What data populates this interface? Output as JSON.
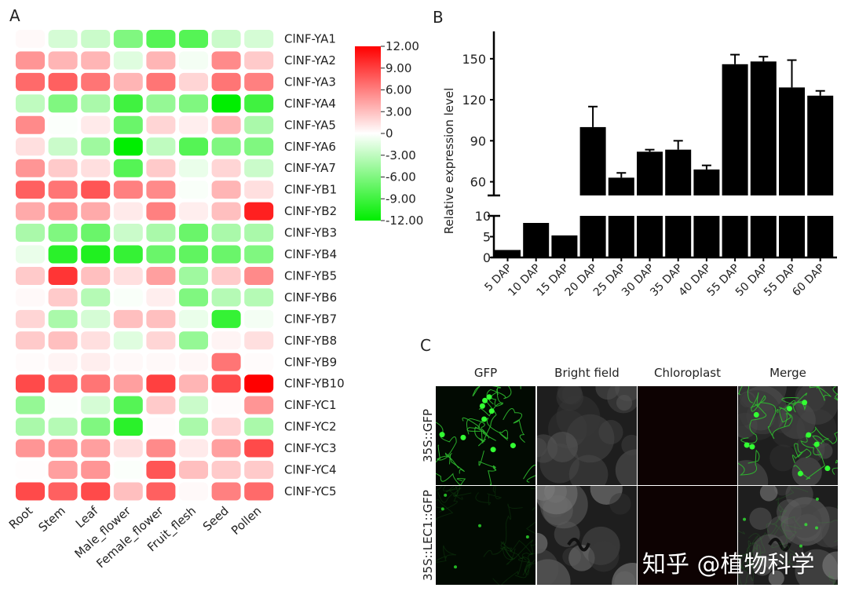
{
  "panels": {
    "a": "A",
    "b": "B",
    "c": "C"
  },
  "chart_data": [
    {
      "type": "heatmap",
      "columns": [
        "Root",
        "Stem",
        "Leaf",
        "Male_flower",
        "Female_flower",
        "Fruit_flesh",
        "Seed",
        "Pollen"
      ],
      "rows": [
        "ClNF-YA1",
        "ClNF-YA2",
        "ClNF-YA3",
        "ClNF-YA4",
        "ClNF-YA5",
        "ClNF-YA6",
        "ClNF-YA7",
        "ClNF-YB1",
        "ClNF-YB2",
        "ClNF-YB3",
        "ClNF-YB4",
        "ClNF-YB5",
        "ClNF-YB6",
        "ClNF-YB7",
        "ClNF-YB8",
        "ClNF-YB9",
        "ClNF-YB10",
        "ClNF-YC1",
        "ClNF-YC2",
        "ClNF-YC3",
        "ClNF-YC4",
        "ClNF-YC5"
      ],
      "values": [
        [
          0.3,
          -2,
          -2.5,
          -6,
          -8,
          -8,
          -2.5,
          -2
        ],
        [
          5,
          3.5,
          3.5,
          -1.5,
          3.5,
          -0.5,
          5.5,
          2.5
        ],
        [
          7,
          7.5,
          6.5,
          3.5,
          6.5,
          2,
          6.5,
          6
        ],
        [
          -3,
          -6,
          -4,
          -9,
          -5,
          -6,
          -12,
          -9
        ],
        [
          5.5,
          -0.2,
          1,
          -7,
          2,
          0.8,
          3.5,
          -4
        ],
        [
          1.5,
          -2.5,
          -4.5,
          -12,
          -3,
          -8,
          -6,
          -6
        ],
        [
          5,
          2.5,
          1.5,
          -8,
          2.5,
          -1,
          2,
          -2.5
        ],
        [
          7.5,
          6.5,
          8,
          6,
          5.5,
          -0.3,
          3.5,
          1.5
        ],
        [
          4,
          5,
          4,
          1,
          6,
          0.8,
          3,
          10.5
        ],
        [
          -4,
          -6,
          -7,
          -2.5,
          -4,
          -7,
          -4,
          -4
        ],
        [
          -1,
          -10,
          -10.5,
          -9.5,
          -7,
          -7.5,
          -7,
          -6
        ],
        [
          2.5,
          9.5,
          3,
          1.5,
          4.5,
          -4.5,
          2.5,
          5.5
        ],
        [
          0.3,
          2.5,
          -3.5,
          -0.3,
          0.8,
          -6,
          -3.5,
          -3.5
        ],
        [
          2,
          -4,
          -2,
          3,
          3,
          -1,
          -9.5,
          -0.5
        ],
        [
          2.5,
          3,
          1.5,
          -1.5,
          2,
          -5,
          0.5,
          1.5
        ],
        [
          0.2,
          0.5,
          0.8,
          0.3,
          0.3,
          0.4,
          6.5,
          0.2
        ],
        [
          8.5,
          7.5,
          6.5,
          4.5,
          9,
          3.5,
          8.5,
          12
        ],
        [
          -5,
          -0.2,
          -2,
          -8,
          2.5,
          -2.5,
          0.2,
          5
        ],
        [
          -4,
          -3.5,
          -6,
          -10,
          0.2,
          -4,
          2,
          -4
        ],
        [
          5,
          5,
          4.5,
          1.5,
          5.5,
          1,
          4.5,
          8.5
        ],
        [
          0.1,
          4.5,
          5,
          -0.2,
          8,
          3,
          2.5,
          2.5
        ],
        [
          8.5,
          7.5,
          8.5,
          3,
          7.5,
          0.3,
          6,
          7
        ]
      ],
      "colorbar": {
        "min": -12,
        "max": 12,
        "ticks": [
          "12.00",
          "9.00",
          "6.00",
          "3.00",
          "0",
          "-3.00",
          "-6.00",
          "-9.00",
          "-12.00"
        ],
        "high_color": "#ff0000",
        "mid_color": "#ffffff",
        "low_color": "#00ee00"
      }
    },
    {
      "type": "bar",
      "ylabel": "Relative expression level",
      "categories": [
        "5 DAP",
        "10 DAP",
        "15 DAP",
        "20 DAP",
        "25 DAP",
        "30 DAP",
        "35 DAP",
        "40 DAP",
        "55 DAP",
        "50 DAP",
        "55 DAP",
        "60 DAP"
      ],
      "values": [
        1.8,
        8.3,
        5.3,
        100,
        63,
        82,
        83.5,
        69,
        146,
        148,
        129,
        123
      ],
      "errors": [
        0,
        0,
        0,
        15,
        3.5,
        1.5,
        6.5,
        3,
        7,
        3.5,
        20,
        3.5
      ],
      "broken_axis": true,
      "lower_ylim": [
        0,
        10
      ],
      "lower_ticks": [
        "0",
        "5",
        "10"
      ],
      "upper_ylim": [
        50,
        170
      ],
      "upper_ticks": [
        "60",
        "90",
        "120",
        "150"
      ],
      "bar_color": "#000000"
    }
  ],
  "microscopy": {
    "columns": [
      "GFP",
      "Bright field",
      "Chloroplast",
      "Merge"
    ],
    "rows": [
      "35S::GFP",
      "35S::LEC1::GFP"
    ]
  },
  "watermark": "知乎 @植物科学"
}
